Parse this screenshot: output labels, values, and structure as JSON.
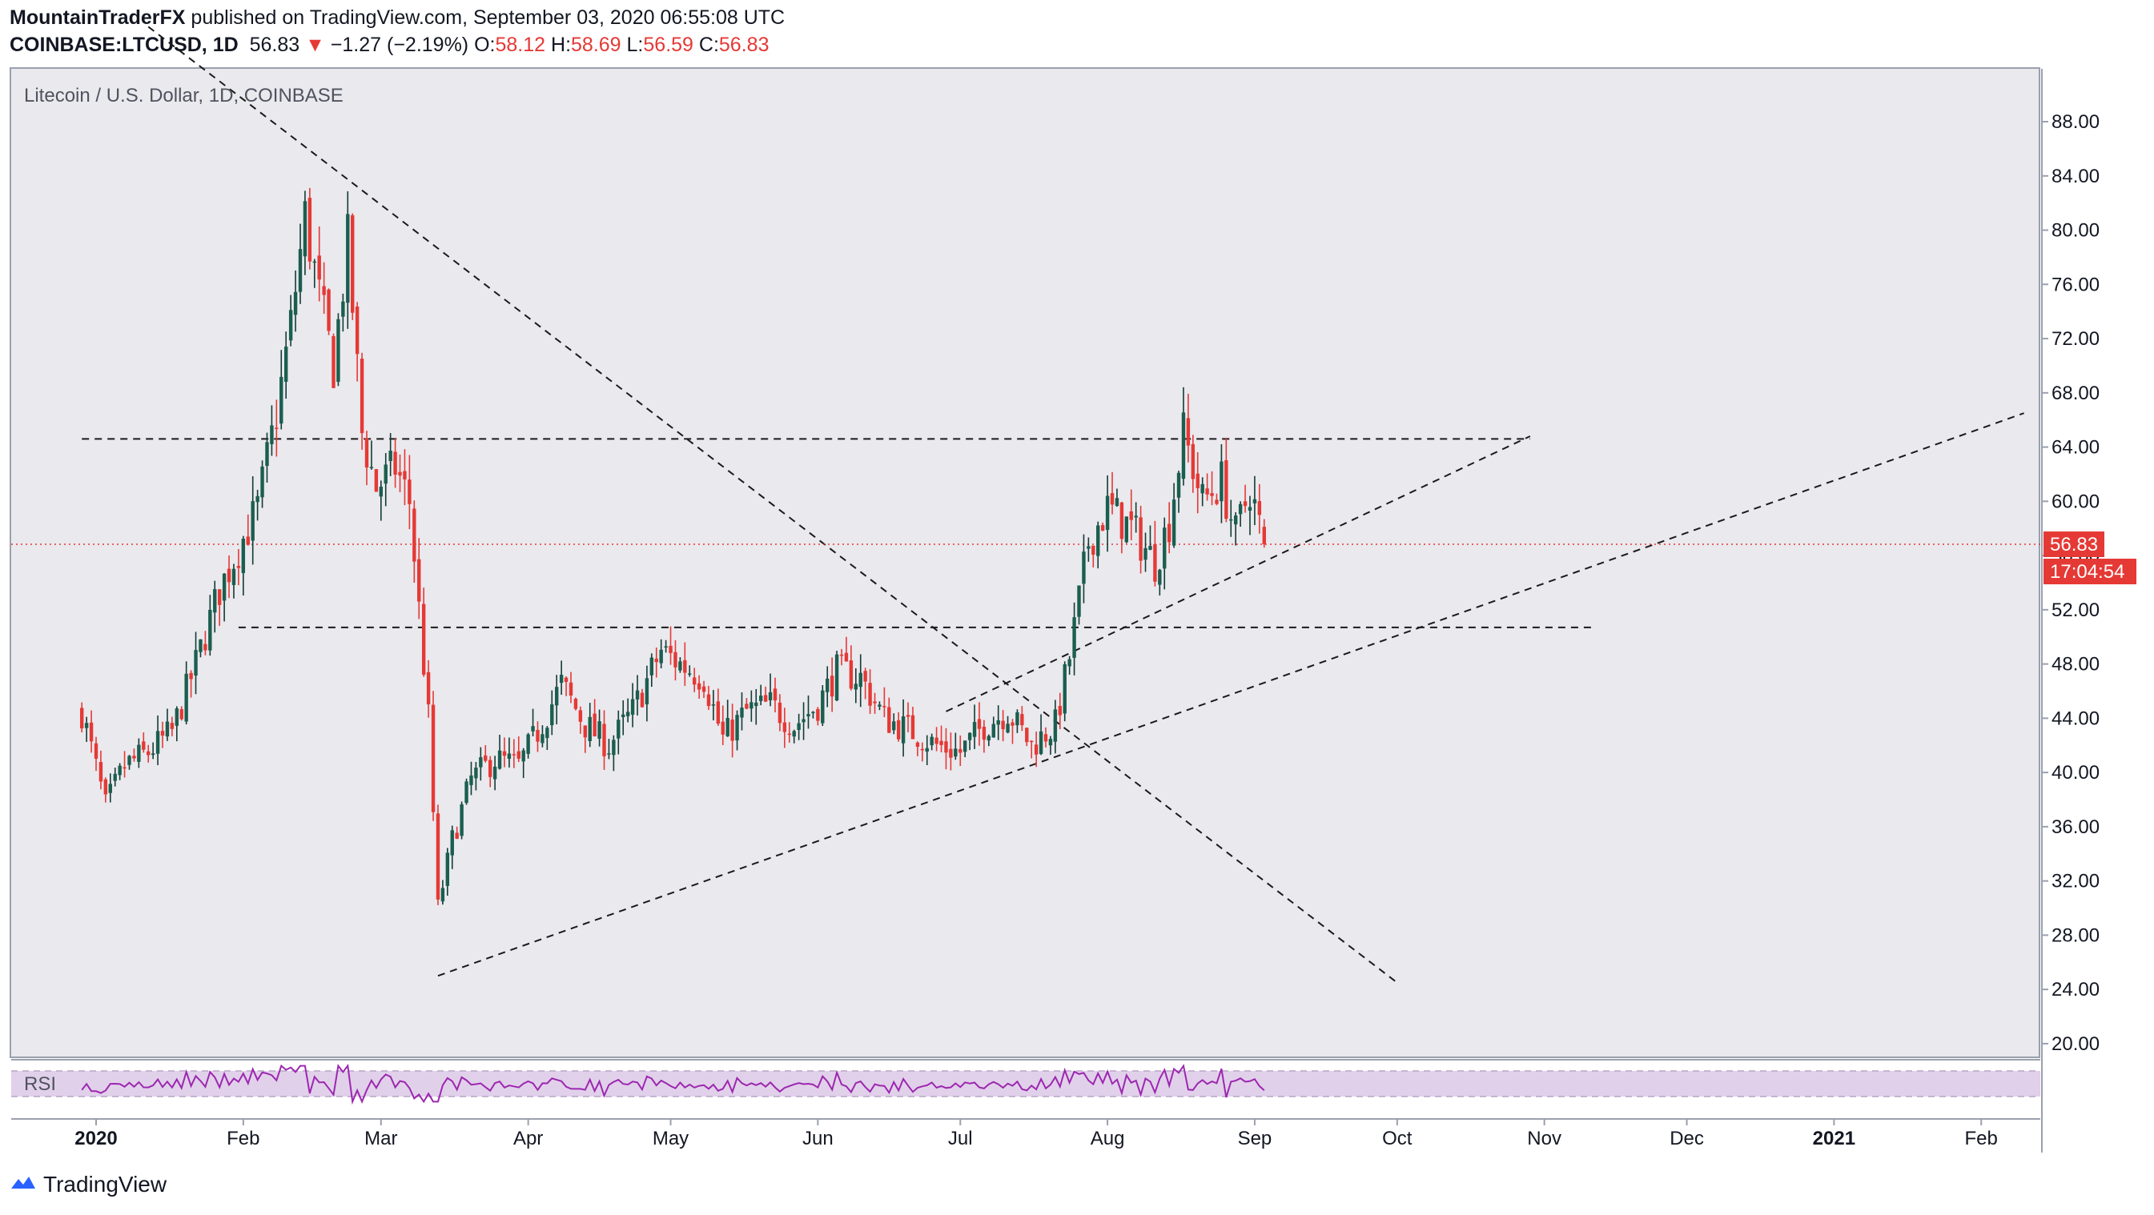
{
  "header": {
    "author": "MountainTraderFX",
    "published": "published on TradingView.com, September 03, 2020 06:55:08 UTC",
    "symbol": "COINBASE:LTCUSD, 1D",
    "last": "56.83",
    "change": "−1.27 (−2.19%)",
    "o_label": "O:",
    "o": "58.12",
    "h_label": "H:",
    "h": "58.69",
    "l_label": "L:",
    "l": "56.59",
    "c_label": "C:",
    "c": "56.83"
  },
  "legend": "Litecoin / U.S. Dollar, 1D, COINBASE",
  "rsi_label": "RSI",
  "price_tag": "56.83",
  "countdown_tag": "17:04:54",
  "brand": "TradingView",
  "colors": {
    "up": "#26a69a",
    "up_body": "#1b5e4f",
    "down": "#e53935",
    "pane_bg": "#e9e9ee",
    "rsi_line": "#9c27b0",
    "rsi_band": "#e1d0ea"
  },
  "chart_data": {
    "type": "candlestick",
    "title": "Litecoin / U.S. Dollar, 1D, COINBASE",
    "y_ticks": [
      "88.00",
      "84.00",
      "80.00",
      "76.00",
      "72.00",
      "68.00",
      "64.00",
      "60.00",
      "56.00",
      "52.00",
      "48.00",
      "44.00",
      "40.00",
      "36.00",
      "32.00",
      "28.00",
      "24.00",
      "20.00"
    ],
    "ylim": [
      18,
      90
    ],
    "x_ticks": [
      "2020",
      "Feb",
      "Mar",
      "Apr",
      "May",
      "Jun",
      "Jul",
      "Aug",
      "Sep",
      "Oct",
      "Nov",
      "Dec",
      "2021",
      "Feb"
    ],
    "close_path": [
      [
        "2019-12-29",
        44.5
      ],
      [
        "2020-01-03",
        37.5
      ],
      [
        "2020-01-07",
        40.5
      ],
      [
        "2020-01-12",
        41.5
      ],
      [
        "2020-01-17",
        43.0
      ],
      [
        "2020-01-22",
        48.0
      ],
      [
        "2020-01-27",
        53.5
      ],
      [
        "2020-01-31",
        56.5
      ],
      [
        "2020-02-04",
        59.5
      ],
      [
        "2020-02-08",
        66.5
      ],
      [
        "2020-02-11",
        73.0
      ],
      [
        "2020-02-14",
        81.0
      ],
      [
        "2020-02-17",
        75.0
      ],
      [
        "2020-02-20",
        70.0
      ],
      [
        "2020-02-23",
        79.0
      ],
      [
        "2020-02-26",
        65.0
      ],
      [
        "2020-02-29",
        61.0
      ],
      [
        "2020-03-04",
        62.5
      ],
      [
        "2020-03-07",
        60.0
      ],
      [
        "2020-03-11",
        44.0
      ],
      [
        "2020-03-13",
        30.0
      ],
      [
        "2020-03-16",
        35.0
      ],
      [
        "2020-03-20",
        39.5
      ],
      [
        "2020-03-25",
        41.0
      ],
      [
        "2020-03-30",
        40.5
      ],
      [
        "2020-04-03",
        43.0
      ],
      [
        "2020-04-08",
        46.5
      ],
      [
        "2020-04-13",
        43.5
      ],
      [
        "2020-04-18",
        42.0
      ],
      [
        "2020-04-23",
        44.5
      ],
      [
        "2020-04-29",
        49.0
      ],
      [
        "2020-05-03",
        48.0
      ],
      [
        "2020-05-08",
        47.0
      ],
      [
        "2020-05-12",
        42.5
      ],
      [
        "2020-05-17",
        44.5
      ],
      [
        "2020-05-22",
        45.0
      ],
      [
        "2020-05-27",
        43.5
      ],
      [
        "2020-06-01",
        45.0
      ],
      [
        "2020-06-05",
        47.5
      ],
      [
        "2020-06-10",
        47.0
      ],
      [
        "2020-06-15",
        44.0
      ],
      [
        "2020-06-21",
        43.0
      ],
      [
        "2020-06-26",
        42.0
      ],
      [
        "2020-07-01",
        41.5
      ],
      [
        "2020-07-06",
        43.5
      ],
      [
        "2020-07-11",
        44.5
      ],
      [
        "2020-07-16",
        42.0
      ],
      [
        "2020-07-21",
        43.5
      ],
      [
        "2020-07-24",
        48.5
      ],
      [
        "2020-07-28",
        57.0
      ],
      [
        "2020-08-01",
        59.5
      ],
      [
        "2020-08-06",
        58.0
      ],
      [
        "2020-08-11",
        55.5
      ],
      [
        "2020-08-14",
        58.5
      ],
      [
        "2020-08-17",
        65.0
      ],
      [
        "2020-08-21",
        60.0
      ],
      [
        "2020-08-25",
        61.5
      ],
      [
        "2020-08-28",
        57.5
      ],
      [
        "2020-08-31",
        61.0
      ],
      [
        "2020-09-03",
        56.83
      ]
    ],
    "trendlines": [
      {
        "from": [
          "2020-01-12",
          95.0
        ],
        "to": [
          "2020-10-01",
          24.5
        ]
      },
      {
        "from": [
          "2020-03-13",
          25.0
        ],
        "to": [
          "2021-02-10",
          66.5
        ]
      },
      {
        "from": [
          "2020-06-28",
          44.5
        ],
        "to": [
          "2020-10-29",
          64.8
        ]
      }
    ],
    "hlines": [
      {
        "from": "2019-12-29",
        "to": "2020-10-29",
        "y": 64.6
      },
      {
        "from": "2020-01-31",
        "to": "2020-11-12",
        "y": 50.7
      }
    ],
    "rsi": {
      "label": "RSI",
      "band": [
        30,
        70
      ],
      "end": "2020-09-03"
    }
  }
}
